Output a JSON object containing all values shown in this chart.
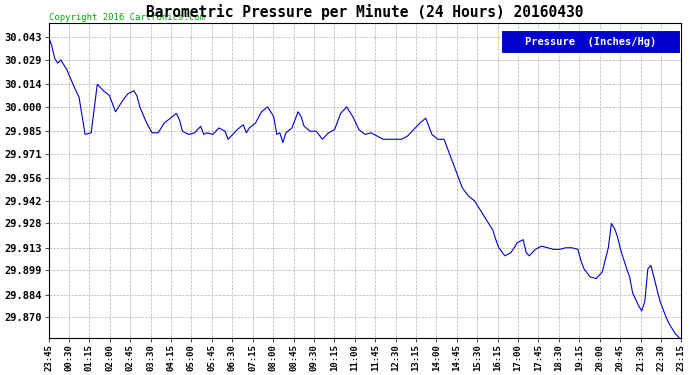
{
  "title": "Barometric Pressure per Minute (24 Hours) 20160430",
  "copyright": "Copyright 2016 Cartronics.com",
  "legend_label": "Pressure  (Inches/Hg)",
  "line_color": "#0000CC",
  "background_color": "#ffffff",
  "grid_color": "#aaaaaa",
  "yticks": [
    29.87,
    29.884,
    29.899,
    29.913,
    29.928,
    29.942,
    29.956,
    29.971,
    29.985,
    30.0,
    30.014,
    30.029,
    30.043
  ],
  "ylim": [
    29.857,
    30.052
  ],
  "xtick_labels": [
    "23:45",
    "00:30",
    "01:15",
    "02:00",
    "02:45",
    "03:30",
    "04:15",
    "05:00",
    "05:45",
    "06:30",
    "07:15",
    "08:00",
    "08:45",
    "09:30",
    "10:15",
    "11:00",
    "11:45",
    "12:30",
    "13:15",
    "14:00",
    "14:45",
    "15:30",
    "16:15",
    "17:00",
    "17:45",
    "18:30",
    "19:15",
    "20:00",
    "20:45",
    "21:30",
    "22:30",
    "23:15"
  ],
  "pressure_keypoints": [
    [
      0,
      30.043
    ],
    [
      5,
      30.038
    ],
    [
      10,
      30.03
    ],
    [
      15,
      30.027
    ],
    [
      20,
      30.029
    ],
    [
      25,
      30.026
    ],
    [
      30,
      30.023
    ],
    [
      40,
      30.014
    ],
    [
      50,
      30.006
    ],
    [
      60,
      29.983
    ],
    [
      70,
      29.984
    ],
    [
      80,
      30.014
    ],
    [
      90,
      30.01
    ],
    [
      100,
      30.007
    ],
    [
      110,
      29.997
    ],
    [
      120,
      30.003
    ],
    [
      130,
      30.008
    ],
    [
      140,
      30.01
    ],
    [
      145,
      30.007
    ],
    [
      150,
      30.0
    ],
    [
      160,
      29.991
    ],
    [
      170,
      29.984
    ],
    [
      180,
      29.984
    ],
    [
      190,
      29.99
    ],
    [
      200,
      29.993
    ],
    [
      210,
      29.996
    ],
    [
      215,
      29.992
    ],
    [
      220,
      29.985
    ],
    [
      230,
      29.983
    ],
    [
      240,
      29.984
    ],
    [
      250,
      29.988
    ],
    [
      255,
      29.983
    ],
    [
      260,
      29.984
    ],
    [
      270,
      29.983
    ],
    [
      280,
      29.987
    ],
    [
      290,
      29.985
    ],
    [
      295,
      29.98
    ],
    [
      300,
      29.982
    ],
    [
      310,
      29.986
    ],
    [
      320,
      29.989
    ],
    [
      325,
      29.984
    ],
    [
      330,
      29.987
    ],
    [
      340,
      29.99
    ],
    [
      350,
      29.997
    ],
    [
      360,
      30.0
    ],
    [
      365,
      29.997
    ],
    [
      370,
      29.994
    ],
    [
      375,
      29.983
    ],
    [
      380,
      29.984
    ],
    [
      385,
      29.978
    ],
    [
      390,
      29.984
    ],
    [
      400,
      29.987
    ],
    [
      410,
      29.997
    ],
    [
      415,
      29.994
    ],
    [
      420,
      29.988
    ],
    [
      430,
      29.985
    ],
    [
      440,
      29.985
    ],
    [
      450,
      29.98
    ],
    [
      460,
      29.984
    ],
    [
      470,
      29.986
    ],
    [
      480,
      29.996
    ],
    [
      490,
      30.0
    ],
    [
      500,
      29.994
    ],
    [
      510,
      29.986
    ],
    [
      520,
      29.983
    ],
    [
      530,
      29.984
    ],
    [
      540,
      29.982
    ],
    [
      550,
      29.98
    ],
    [
      560,
      29.98
    ],
    [
      570,
      29.98
    ],
    [
      580,
      29.98
    ],
    [
      590,
      29.982
    ],
    [
      600,
      29.986
    ],
    [
      610,
      29.99
    ],
    [
      620,
      29.993
    ],
    [
      625,
      29.988
    ],
    [
      630,
      29.983
    ],
    [
      640,
      29.98
    ],
    [
      650,
      29.98
    ],
    [
      660,
      29.97
    ],
    [
      670,
      29.96
    ],
    [
      680,
      29.95
    ],
    [
      690,
      29.945
    ],
    [
      700,
      29.942
    ],
    [
      710,
      29.936
    ],
    [
      720,
      29.93
    ],
    [
      730,
      29.924
    ],
    [
      735,
      29.918
    ],
    [
      740,
      29.913
    ],
    [
      750,
      29.908
    ],
    [
      760,
      29.91
    ],
    [
      770,
      29.916
    ],
    [
      780,
      29.918
    ],
    [
      785,
      29.91
    ],
    [
      790,
      29.908
    ],
    [
      800,
      29.912
    ],
    [
      810,
      29.914
    ],
    [
      820,
      29.913
    ],
    [
      830,
      29.912
    ],
    [
      840,
      29.912
    ],
    [
      850,
      29.913
    ],
    [
      860,
      29.913
    ],
    [
      870,
      29.912
    ],
    [
      875,
      29.905
    ],
    [
      880,
      29.9
    ],
    [
      890,
      29.895
    ],
    [
      900,
      29.894
    ],
    [
      910,
      29.898
    ],
    [
      920,
      29.913
    ],
    [
      925,
      29.928
    ],
    [
      930,
      29.925
    ],
    [
      935,
      29.92
    ],
    [
      940,
      29.912
    ],
    [
      945,
      29.906
    ],
    [
      950,
      29.9
    ],
    [
      955,
      29.895
    ],
    [
      960,
      29.885
    ],
    [
      970,
      29.877
    ],
    [
      975,
      29.874
    ],
    [
      980,
      29.88
    ],
    [
      985,
      29.9
    ],
    [
      990,
      29.902
    ],
    [
      995,
      29.895
    ],
    [
      1000,
      29.887
    ],
    [
      1005,
      29.88
    ],
    [
      1010,
      29.875
    ],
    [
      1015,
      29.87
    ],
    [
      1020,
      29.866
    ],
    [
      1025,
      29.863
    ],
    [
      1030,
      29.86
    ],
    [
      1035,
      29.858
    ],
    [
      1040,
      29.856
    ]
  ]
}
